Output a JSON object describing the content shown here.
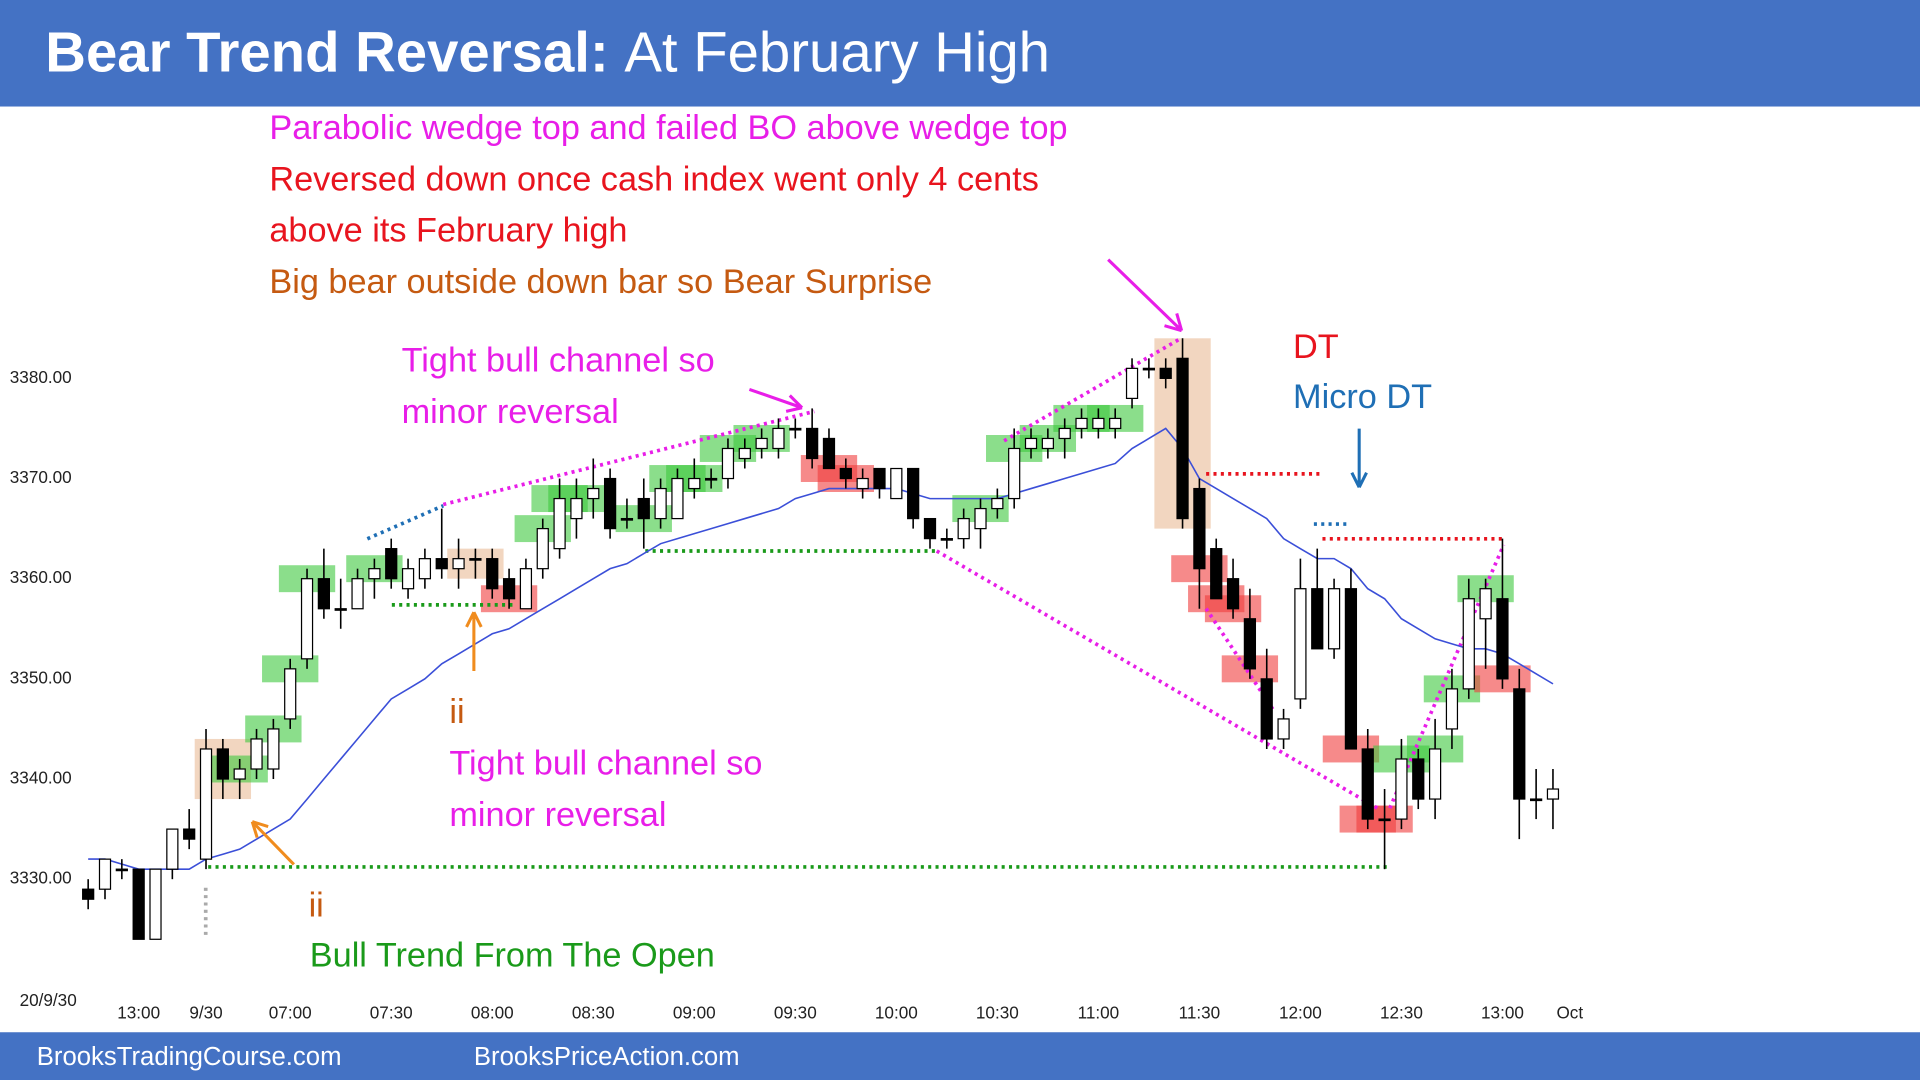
{
  "header": {
    "title_bold": "Bear Trend Reversal:",
    "title_rest": "At February High"
  },
  "footer": {
    "left": "BrooksTradingCourse.com",
    "right": "BrooksPriceAction.com"
  },
  "chart_data": {
    "type": "candlestick",
    "date_label": "20/9/30",
    "open": [
      3329,
      3329,
      3331,
      3331,
      3324,
      3331,
      3335,
      3332,
      3343,
      3340,
      3341,
      3341,
      3346,
      3352,
      3360,
      3357,
      3357,
      3360,
      3363,
      3359,
      3360,
      3362,
      3361,
      3362,
      3362,
      3360,
      3357,
      3361,
      3363,
      3366,
      3368,
      3370,
      3366,
      3368,
      3366,
      3366,
      3369,
      3370,
      3370,
      3372,
      3373,
      3373,
      3375,
      3375,
      3374,
      3371,
      3369,
      3371,
      3368,
      3371,
      3366,
      3364,
      3364,
      3365,
      3367,
      3368,
      3373,
      3373,
      3374,
      3375,
      3375,
      3375,
      3378,
      3381,
      3381,
      3382,
      3369,
      3363,
      3360,
      3356,
      3350,
      3344,
      3348,
      3359,
      3353,
      3359,
      3343,
      3336,
      3336,
      3342,
      3338,
      3345,
      3349,
      3356,
      3358,
      3349,
      3338,
      3338
    ],
    "high": [
      3330,
      3332,
      3332,
      3331,
      3331,
      3335,
      3337,
      3345,
      3344,
      3342,
      3345,
      3346,
      3352,
      3361,
      3363,
      3360,
      3361,
      3362,
      3364,
      3362,
      3363,
      3367,
      3364,
      3363,
      3363,
      3361,
      3362,
      3366,
      3370,
      3370,
      3372,
      3371,
      3368,
      3370,
      3370,
      3371,
      3372,
      3371,
      3374,
      3374,
      3375,
      3376,
      3376,
      3377,
      3375,
      3372,
      3371,
      3371,
      3371,
      3371,
      3366,
      3365,
      3367,
      3368,
      3369,
      3375,
      3375,
      3375,
      3376,
      3377,
      3377,
      3377,
      3382,
      3382,
      3382,
      3384,
      3370,
      3364,
      3362,
      3359,
      3353,
      3347,
      3362,
      3363,
      3360,
      3361,
      3345,
      3339,
      3344,
      3343,
      3346,
      3351,
      3360,
      3360,
      3364,
      3351,
      3341,
      3341
    ],
    "low": [
      3327,
      3328,
      3330,
      3324,
      3324,
      3330,
      3333,
      3331,
      3338,
      3338,
      3340,
      3340,
      3345,
      3351,
      3356,
      3355,
      3357,
      3358,
      3359,
      3358,
      3359,
      3360,
      3359,
      3360,
      3358,
      3357,
      3357,
      3360,
      3362,
      3364,
      3366,
      3364,
      3365,
      3363,
      3365,
      3366,
      3368,
      3369,
      3369,
      3371,
      3372,
      3372,
      3374,
      3371,
      3371,
      3369,
      3368,
      3368,
      3368,
      3365,
      3363,
      3363,
      3363,
      3363,
      3366,
      3367,
      3372,
      3372,
      3372,
      3374,
      3374,
      3374,
      3377,
      3380,
      3379,
      3365,
      3357,
      3358,
      3356,
      3350,
      3343,
      3343,
      3347,
      3353,
      3352,
      3343,
      3335,
      3331,
      3335,
      3337,
      3336,
      3343,
      3348,
      3351,
      3349,
      3334,
      3336,
      3335
    ],
    "close": [
      3328,
      3332,
      3331,
      3324,
      3331,
      3335,
      3334,
      3343,
      3340,
      3341,
      3344,
      3345,
      3351,
      3360,
      3357,
      3357,
      3360,
      3361,
      3360,
      3361,
      3362,
      3361,
      3362,
      3362,
      3359,
      3358,
      3361,
      3365,
      3368,
      3368,
      3369,
      3365,
      3366,
      3366,
      3369,
      3370,
      3370,
      3370,
      3373,
      3373,
      3374,
      3375,
      3375,
      3372,
      3371,
      3370,
      3370,
      3369,
      3371,
      3366,
      3364,
      3364,
      3366,
      3367,
      3368,
      3373,
      3374,
      3374,
      3375,
      3376,
      3376,
      3376,
      3381,
      3381,
      3380,
      3366,
      3361,
      3358,
      3357,
      3351,
      3344,
      3346,
      3359,
      3353,
      3359,
      3343,
      3336,
      3336,
      3342,
      3338,
      3343,
      3349,
      3358,
      3359,
      3350,
      3338,
      3338,
      3339
    ],
    "ema": [
      3332,
      3332,
      3331.5,
      3331,
      3331,
      3331,
      3331,
      3332,
      3332.5,
      3333,
      3334,
      3335,
      3336,
      3338,
      3340,
      3342,
      3344,
      3346,
      3348,
      3349,
      3350,
      3351.5,
      3352.5,
      3353.5,
      3354.5,
      3355,
      3356,
      3357,
      3358,
      3359,
      3360,
      3361,
      3361.5,
      3362.5,
      3363.5,
      3364,
      3364.5,
      3365,
      3365.5,
      3366,
      3366.5,
      3367,
      3368,
      3368.5,
      3369,
      3369,
      3369,
      3369,
      3369,
      3368.5,
      3368,
      3368,
      3368,
      3368,
      3368,
      3368.5,
      3369,
      3369.5,
      3370,
      3370.5,
      3371,
      3371.5,
      3373,
      3374,
      3375,
      3373,
      3370,
      3369,
      3368,
      3367,
      3366,
      3364,
      3363,
      3362,
      3362,
      3361,
      3359,
      3358,
      3356,
      3355,
      3354,
      3353.5,
      3353,
      3353,
      3352.5,
      3351.5,
      3350.5,
      3349.5
    ],
    "ema_color": "#3b4fd8",
    "ylim": [
      3322,
      3388
    ],
    "yticks": [
      {
        "value": 3330,
        "label": "3330.00"
      },
      {
        "value": 3340,
        "label": "3340.00"
      },
      {
        "value": 3350,
        "label": "3350.00"
      },
      {
        "value": 3360,
        "label": "3360.00"
      },
      {
        "value": 3370,
        "label": "3370.00"
      },
      {
        "value": 3380,
        "label": "3380.00"
      }
    ],
    "xlim": [
      -1,
      89
    ],
    "xticks": [
      {
        "value": 3,
        "label": "13:00"
      },
      {
        "value": 7,
        "label": "9/30"
      },
      {
        "value": 12,
        "label": "07:00"
      },
      {
        "value": 18,
        "label": "07:30"
      },
      {
        "value": 24,
        "label": "08:00"
      },
      {
        "value": 30,
        "label": "08:30"
      },
      {
        "value": 36,
        "label": "09:00"
      },
      {
        "value": 42,
        "label": "09:30"
      },
      {
        "value": 48,
        "label": "10:00"
      },
      {
        "value": 54,
        "label": "10:30"
      },
      {
        "value": 60,
        "label": "11:00"
      },
      {
        "value": 66,
        "label": "11:30"
      },
      {
        "value": 72,
        "label": "12:00"
      },
      {
        "value": 78,
        "label": "12:30"
      },
      {
        "value": 84,
        "label": "13:00"
      },
      {
        "value": 88,
        "label": "Oct"
      }
    ],
    "annotations": [
      {
        "text": "Parabolic wedge top and failed BO above wedge top",
        "color": "#e81ee8"
      },
      {
        "text": "Reversed down once cash index went only 4 cents",
        "color": "#e8141e"
      },
      {
        "text": "above its February high",
        "color": "#e8141e"
      },
      {
        "text": "Big bear outside down bar so Bear Surprise",
        "color": "#c55a11"
      },
      {
        "text": "Tight bull channel so",
        "color": "#e81ee8"
      },
      {
        "text": "minor reversal",
        "color": "#e81ee8"
      },
      {
        "text": "DT",
        "color": "#e8141e"
      },
      {
        "text": "Micro DT",
        "color": "#1f6fb5"
      },
      {
        "text": "ii",
        "color": "#c55a11"
      },
      {
        "text": "Tight bull channel so",
        "color": "#e81ee8"
      },
      {
        "text": "minor reversal",
        "color": "#e81ee8"
      },
      {
        "text": "ii",
        "color": "#c55a11"
      },
      {
        "text": "Bull Trend From The Open",
        "color": "#1a9a1a"
      }
    ]
  }
}
